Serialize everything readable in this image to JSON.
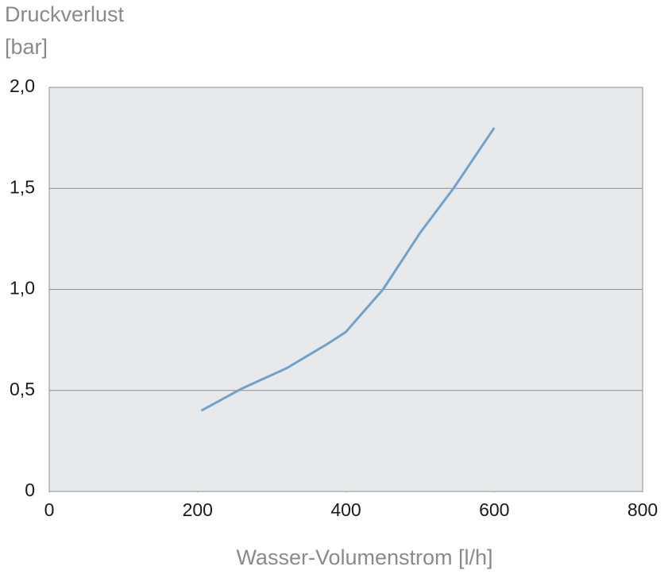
{
  "chart_data": {
    "type": "line",
    "ylabel": [
      "Druckverlust",
      "[bar]"
    ],
    "xlabel": "Wasser-Volumenstrom [l/h]",
    "series": [
      {
        "color": "#6fa3cc",
        "x": [
          205,
          260,
          320,
          375,
          400,
          450,
          500,
          545,
          600
        ],
        "values": [
          0.4,
          0.51,
          0.61,
          0.73,
          0.79,
          1.0,
          1.28,
          1.5,
          1.8
        ]
      }
    ],
    "xlim": [
      0,
      800
    ],
    "xticks": [
      0,
      200,
      400,
      600,
      800
    ],
    "ylim": [
      0,
      2
    ],
    "yticks": [
      0,
      {
        "value": 0.5,
        "label": "0,5"
      },
      {
        "value": 1,
        "label": "1,0"
      },
      {
        "value": 1.5,
        "label": "1,5"
      },
      {
        "value": 2,
        "label": "2,0"
      }
    ],
    "grid": true
  }
}
